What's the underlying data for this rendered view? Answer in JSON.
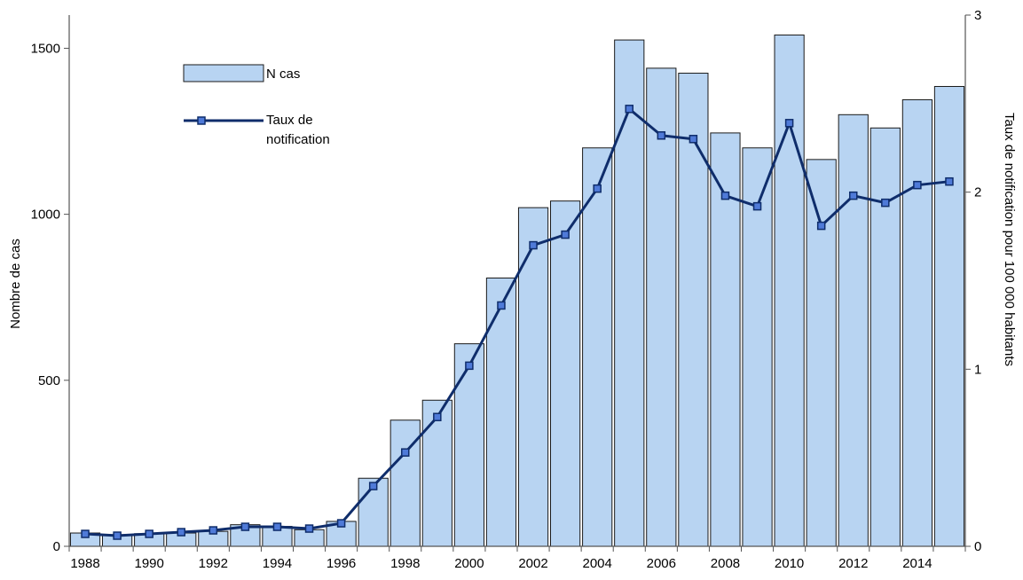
{
  "chart_data": {
    "type": "bar",
    "categories": [
      "1988",
      "1989",
      "1990",
      "1991",
      "1992",
      "1993",
      "1994",
      "1995",
      "1996",
      "1997",
      "1998",
      "1999",
      "2000",
      "2001",
      "2002",
      "2003",
      "2004",
      "2005",
      "2006",
      "2007",
      "2008",
      "2009",
      "2010",
      "2011",
      "2012",
      "2013",
      "2014",
      "2015"
    ],
    "x_tick_labels": [
      "1988",
      "1990",
      "1992",
      "1994",
      "1996",
      "1998",
      "2000",
      "2002",
      "2004",
      "2006",
      "2008",
      "2010",
      "2012",
      "2014"
    ],
    "series": [
      {
        "name": "N cas",
        "type": "bar",
        "axis": "left",
        "values": [
          40,
          35,
          38,
          40,
          45,
          65,
          60,
          50,
          75,
          205,
          380,
          440,
          610,
          808,
          1020,
          1040,
          1200,
          1525,
          1440,
          1425,
          1245,
          1200,
          1540,
          1165,
          1300,
          1260,
          1345,
          1385
        ]
      },
      {
        "name": "Taux de notification",
        "type": "line",
        "axis": "right",
        "values": [
          0.07,
          0.06,
          0.07,
          0.08,
          0.09,
          0.11,
          0.11,
          0.1,
          0.13,
          0.34,
          0.53,
          0.73,
          1.02,
          1.36,
          1.7,
          1.76,
          2.02,
          2.47,
          2.32,
          2.3,
          1.98,
          1.92,
          2.39,
          1.81,
          1.98,
          1.94,
          2.04,
          2.06
        ]
      }
    ],
    "ylabel": "Nombre de cas",
    "y2label": "Taux de notification pour 100 000 habitants",
    "ylim": [
      0,
      1600
    ],
    "y2lim": [
      0,
      3
    ],
    "yticks": [
      0,
      500,
      1000,
      1500
    ],
    "y2ticks": [
      0,
      1,
      2,
      3
    ],
    "grid": false,
    "legend_position": "top-left",
    "colors": {
      "bar_fill": "#b8d4f2",
      "bar_stroke": "#1a1a1a",
      "line": "#0f2d6b",
      "marker_fill": "#4f7ad8",
      "axis": "#555555"
    }
  }
}
